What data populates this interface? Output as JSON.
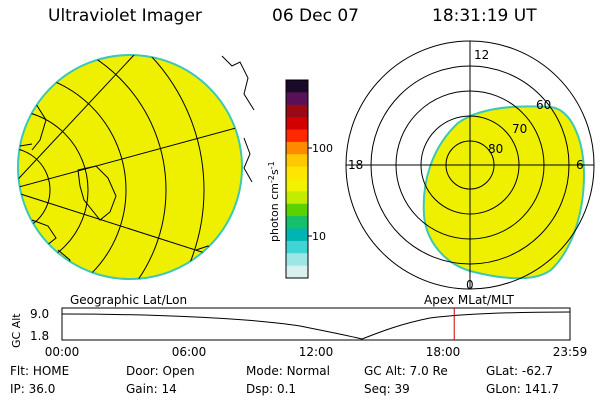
{
  "header": {
    "title": "Ultraviolet Imager",
    "date": "06 Dec 07",
    "time": "18:31:19 UT"
  },
  "colorbar": {
    "label_main": "photon cm",
    "label_sup1": "-2",
    "label_mid": "s",
    "label_sup2": "-1",
    "ticks": [
      "100",
      "10"
    ],
    "colors": [
      "#1a0a28",
      "#5a1058",
      "#9a0a14",
      "#d20000",
      "#ff2800",
      "#ff8a00",
      "#ffc800",
      "#ffe600",
      "#f2f200",
      "#c4ec00",
      "#5ad200",
      "#14c06a",
      "#00b4b4",
      "#40d4d4",
      "#9ce6e6",
      "#d8f0f0"
    ]
  },
  "left_map": {
    "caption": "Geographic Lat/Lon",
    "fill_color": "#eef000",
    "edge_color": "#3cc8b4"
  },
  "right_map": {
    "caption": "Apex MLat/MLT",
    "mlt_labels": {
      "top": "12",
      "left": "18",
      "right": "6",
      "bottom": "0"
    },
    "lat_labels": [
      "60",
      "70",
      "80"
    ],
    "fill_color": "#eef000",
    "edge_color": "#3cc8b4"
  },
  "altitude_plot": {
    "ylabel": "GC Alt",
    "y_ticks": [
      "9.0",
      "1.8"
    ],
    "x_ticks": [
      "00:00",
      "06:00",
      "12:00",
      "18:00",
      "23:59"
    ],
    "marker_time": "18:31",
    "marker_color": "#cc0000"
  },
  "status": {
    "row1": [
      {
        "key": "Flt:",
        "val": "HOME"
      },
      {
        "key": "Door:",
        "val": "Open"
      },
      {
        "key": "Mode:",
        "val": "Normal"
      },
      {
        "key": "GC Alt:",
        "val": "7.0 Re"
      },
      {
        "key": "GLat:",
        "val": "-62.7"
      }
    ],
    "row2": [
      {
        "key": "IP:",
        "val": "36.0"
      },
      {
        "key": "Gain:",
        "val": "14"
      },
      {
        "key": "Dsp:",
        "val": "0.1"
      },
      {
        "key": "Seq:",
        "val": "39"
      },
      {
        "key": "GLon:",
        "val": "141.7"
      }
    ]
  }
}
